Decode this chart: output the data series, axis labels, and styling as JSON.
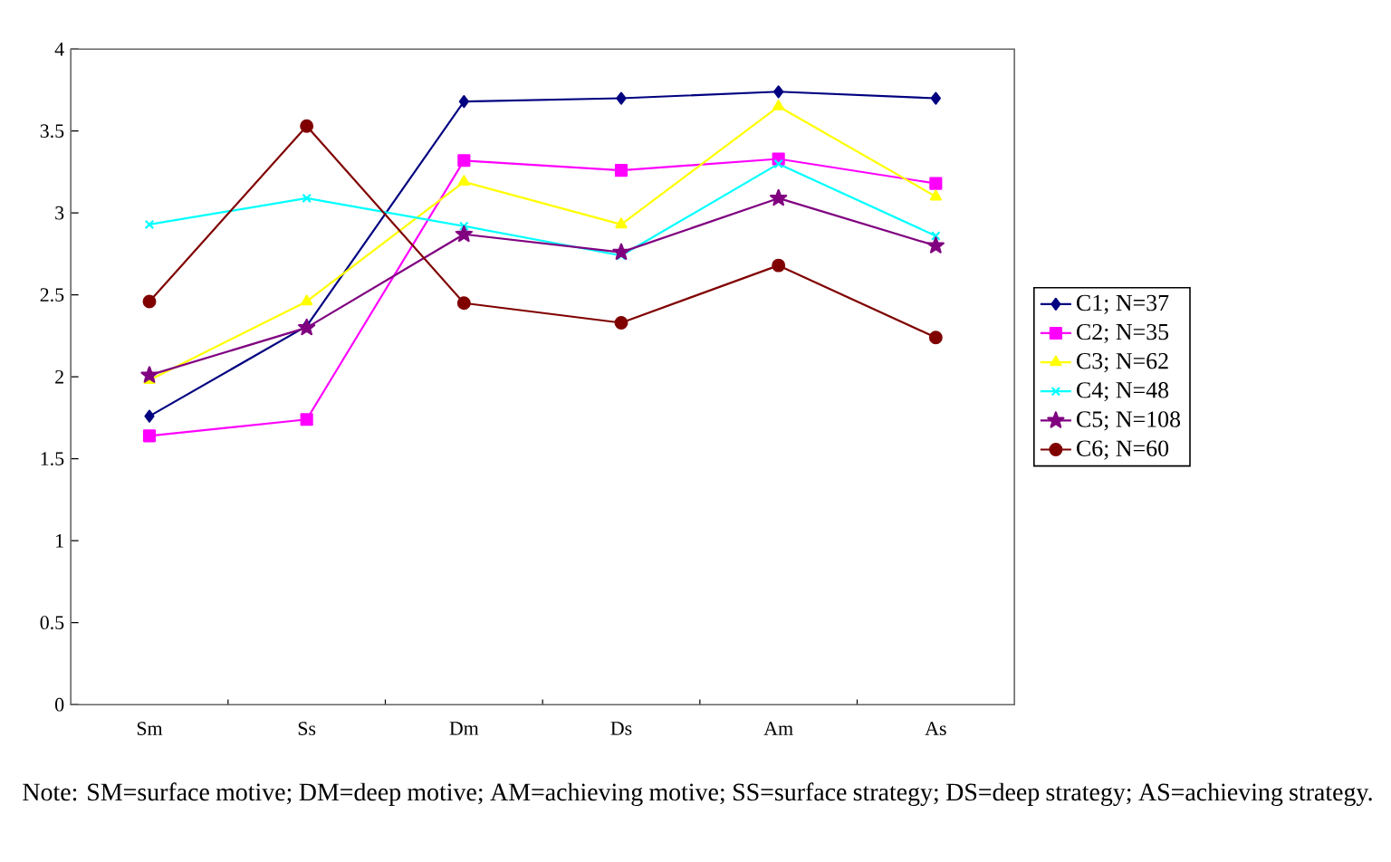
{
  "chart_data": {
    "type": "line",
    "categories": [
      "Sm",
      "Ss",
      "Dm",
      "Ds",
      "Am",
      "As"
    ],
    "series": [
      {
        "name": "C1; N=37",
        "color": "#000080",
        "marker": "diamond",
        "values": [
          1.76,
          2.31,
          3.68,
          3.7,
          3.74,
          3.7
        ]
      },
      {
        "name": "C2; N=35",
        "color": "#ff00ff",
        "marker": "square",
        "values": [
          1.64,
          1.74,
          3.32,
          3.26,
          3.33,
          3.18
        ]
      },
      {
        "name": "C3; N=62",
        "color": "#ffff00",
        "marker": "triangle",
        "values": [
          1.98,
          2.46,
          3.19,
          2.93,
          3.65,
          3.1
        ]
      },
      {
        "name": "C4; N=48",
        "color": "#00ffff",
        "marker": "cross",
        "values": [
          2.93,
          3.09,
          2.92,
          2.74,
          3.3,
          2.86
        ]
      },
      {
        "name": "C5; N=108",
        "color": "#800080",
        "marker": "star",
        "values": [
          2.01,
          2.3,
          2.87,
          2.76,
          3.09,
          2.8
        ]
      },
      {
        "name": "C6; N=60",
        "color": "#800000",
        "marker": "circle",
        "values": [
          2.46,
          3.53,
          2.45,
          2.33,
          2.68,
          2.24
        ]
      }
    ],
    "ylim": [
      0,
      4
    ],
    "yticks": [
      0,
      0.5,
      1,
      1.5,
      2,
      2.5,
      3,
      3.5,
      4
    ],
    "grid": false,
    "legend": "right",
    "line_style": "solid",
    "annotations": [
      "Note: SM=surface motive; DM=deep motive; AM=achieving motive; SS=surface strategy; DS=deep strategy; AS=achieving strategy."
    ]
  }
}
